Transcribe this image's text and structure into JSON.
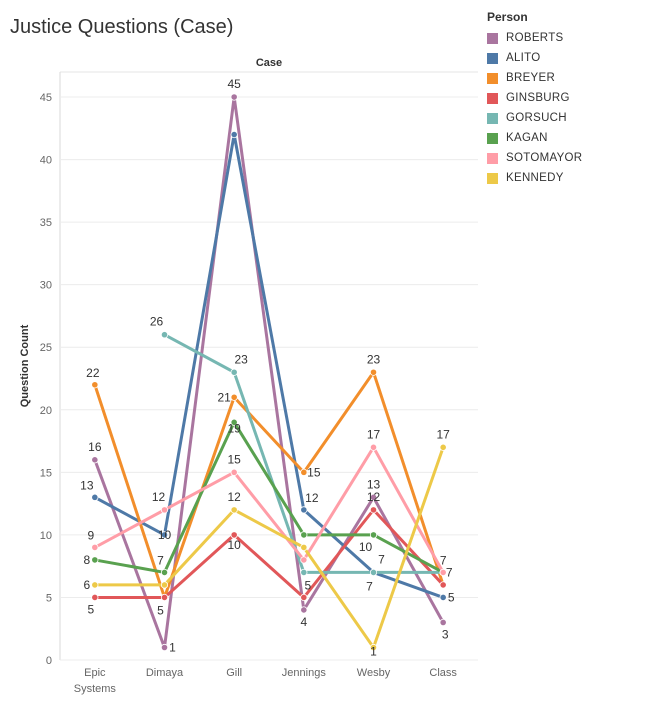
{
  "page_title": "Justice Questions (Case)",
  "chart_data": {
    "type": "line",
    "title": "Justice Questions (Case)",
    "header": "Case",
    "xlabel": "",
    "ylabel": "Question Count",
    "ylim": [
      0,
      47
    ],
    "yticks": [
      0,
      5,
      10,
      15,
      20,
      25,
      30,
      35,
      40,
      45
    ],
    "categories": [
      [
        "Epic",
        "Systems"
      ],
      [
        "Dimaya"
      ],
      [
        "Gill"
      ],
      [
        "Jennings"
      ],
      [
        "Wesby"
      ],
      [
        "Class"
      ]
    ],
    "legend_title": "Person",
    "series": [
      {
        "name": "ROBERTS",
        "color": "#a9759f",
        "values": [
          16,
          1,
          45,
          4,
          13,
          3
        ]
      },
      {
        "name": "ALITO",
        "color": "#4e79a7",
        "values": [
          13,
          10,
          42,
          12,
          7,
          5
        ]
      },
      {
        "name": "BREYER",
        "color": "#f28e2b",
        "values": [
          22,
          5,
          21,
          15,
          23,
          6
        ]
      },
      {
        "name": "GINSBURG",
        "color": "#e15759",
        "values": [
          5,
          5,
          10,
          5,
          12,
          6
        ]
      },
      {
        "name": "GORSUCH",
        "color": "#76b7b2",
        "values": [
          null,
          26,
          23,
          7,
          7,
          7
        ]
      },
      {
        "name": "KAGAN",
        "color": "#59a14f",
        "values": [
          8,
          7,
          19,
          10,
          10,
          7
        ]
      },
      {
        "name": "SOTOMAYOR",
        "color": "#ff9da7",
        "values": [
          9,
          12,
          15,
          8,
          17,
          7
        ]
      },
      {
        "name": "KENNEDY",
        "color": "#edc948",
        "values": [
          6,
          6,
          12,
          9,
          1,
          17
        ]
      }
    ],
    "data_labels": [
      {
        "text": "22",
        "series": "BREYER",
        "cat": 0,
        "y": 22
      },
      {
        "text": "16",
        "series": "ROBERTS",
        "cat": 0,
        "y": 16
      },
      {
        "text": "13",
        "series": "ALITO",
        "cat": 0,
        "y": 13
      },
      {
        "text": "9",
        "series": "SOTOMAYOR",
        "cat": 0,
        "y": 9
      },
      {
        "text": "8",
        "series": "KAGAN",
        "cat": 0,
        "y": 8
      },
      {
        "text": "6",
        "series": "KENNEDY",
        "cat": 0,
        "y": 6
      },
      {
        "text": "5",
        "series": "GINSBURG",
        "cat": 0,
        "y": 5
      },
      {
        "text": "26",
        "series": "GORSUCH",
        "cat": 1,
        "y": 26
      },
      {
        "text": "12",
        "series": "SOTOMAYOR",
        "cat": 1,
        "y": 12
      },
      {
        "text": "10",
        "series": "ALITO",
        "cat": 1,
        "y": 10
      },
      {
        "text": "7",
        "series": "KAGAN",
        "cat": 1,
        "y": 7
      },
      {
        "text": "5",
        "series": "BREYER",
        "cat": 1,
        "y": 5
      },
      {
        "text": "1",
        "series": "ROBERTS",
        "cat": 1,
        "y": 1
      },
      {
        "text": "45",
        "series": "ROBERTS",
        "cat": 2,
        "y": 45
      },
      {
        "text": "23",
        "series": "GORSUCH",
        "cat": 2,
        "y": 23
      },
      {
        "text": "21",
        "series": "BREYER",
        "cat": 2,
        "y": 21
      },
      {
        "text": "19",
        "series": "KAGAN",
        "cat": 2,
        "y": 19
      },
      {
        "text": "15",
        "series": "SOTOMAYOR",
        "cat": 2,
        "y": 15
      },
      {
        "text": "12",
        "series": "KENNEDY",
        "cat": 2,
        "y": 12
      },
      {
        "text": "10",
        "series": "GINSBURG",
        "cat": 2,
        "y": 10
      },
      {
        "text": "15",
        "series": "BREYER",
        "cat": 3,
        "y": 15
      },
      {
        "text": "12",
        "series": "ALITO",
        "cat": 3,
        "y": 12
      },
      {
        "text": "5",
        "series": "GINSBURG",
        "cat": 3,
        "y": 5
      },
      {
        "text": "4",
        "series": "ROBERTS",
        "cat": 3,
        "y": 4
      },
      {
        "text": "23",
        "series": "BREYER",
        "cat": 4,
        "y": 23
      },
      {
        "text": "17",
        "series": "SOTOMAYOR",
        "cat": 4,
        "y": 17
      },
      {
        "text": "13",
        "series": "ROBERTS",
        "cat": 4,
        "y": 13
      },
      {
        "text": "12",
        "series": "GINSBURG",
        "cat": 4,
        "y": 12
      },
      {
        "text": "10",
        "series": "KAGAN",
        "cat": 4,
        "y": 10
      },
      {
        "text": "7",
        "series": "GORSUCH",
        "cat": 4,
        "y": 7
      },
      {
        "text": "7",
        "series": "ALITO",
        "cat": 4,
        "y": 7
      },
      {
        "text": "1",
        "series": "KENNEDY",
        "cat": 4,
        "y": 1
      },
      {
        "text": "17",
        "series": "KENNEDY",
        "cat": 5,
        "y": 17
      },
      {
        "text": "7",
        "series": "KAGAN",
        "cat": 5,
        "y": 7
      },
      {
        "text": "7",
        "series": "SOTOMAYOR",
        "cat": 5,
        "y": 7
      },
      {
        "text": "5",
        "series": "ALITO",
        "cat": 5,
        "y": 5
      },
      {
        "text": "3",
        "series": "ROBERTS",
        "cat": 5,
        "y": 3
      }
    ]
  }
}
